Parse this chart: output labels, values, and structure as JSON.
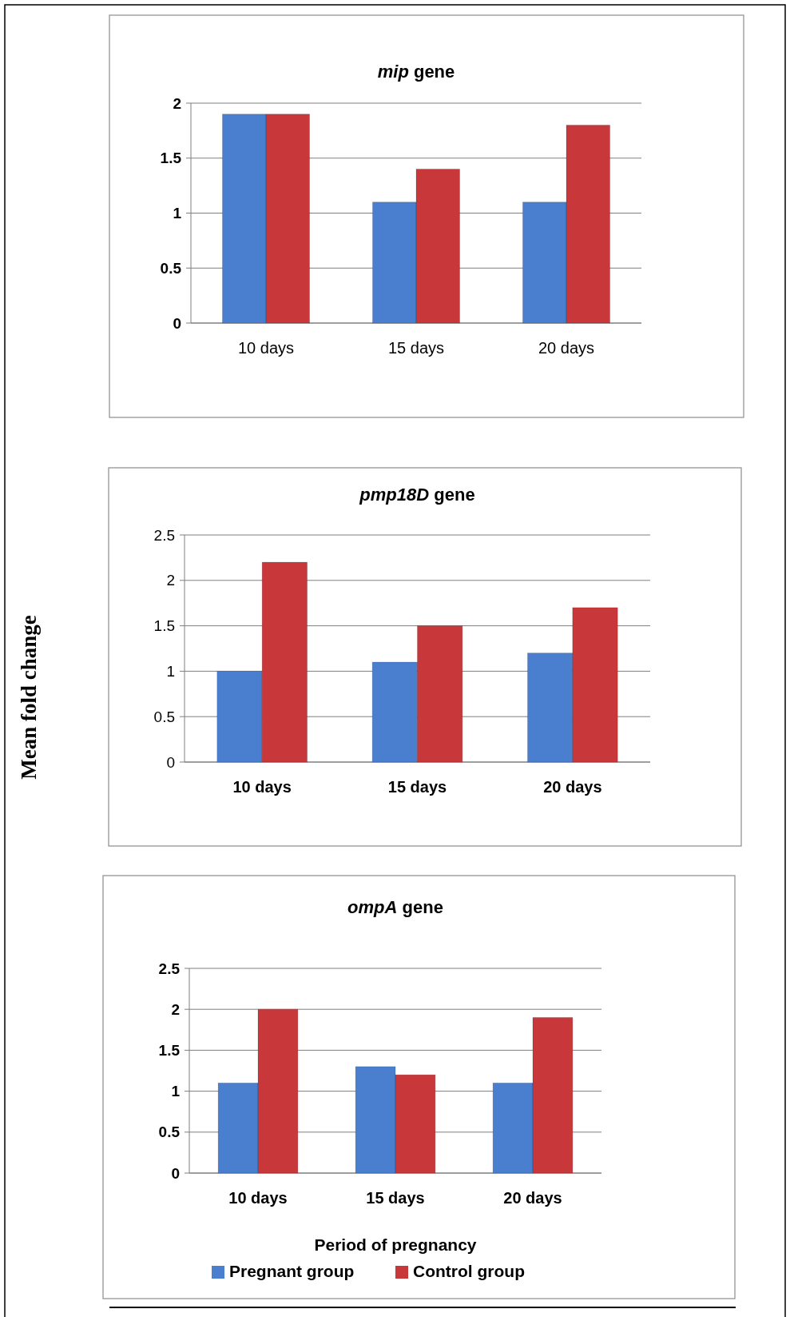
{
  "chart_data": [
    {
      "type": "bar",
      "title": "mip gene",
      "categories": [
        "10 days",
        "15 days",
        "20 days"
      ],
      "series": [
        {
          "color": "#4a7fcf",
          "values": [
            1.9,
            1.1,
            1.1
          ]
        },
        {
          "color": "#c8373a",
          "values": [
            1.9,
            1.4,
            1.8
          ]
        }
      ],
      "ylim": [
        0,
        2
      ],
      "yticks": [
        0,
        0.5,
        1,
        1.5,
        2
      ],
      "grid": "y",
      "legend": false
    },
    {
      "type": "bar",
      "title": "pmp18D gene",
      "ylabel": "Mean fold change",
      "categories": [
        "10 days",
        "15 days",
        "20 days"
      ],
      "series": [
        {
          "color": "#4a7fcf",
          "values": [
            1.0,
            1.1,
            1.2
          ]
        },
        {
          "color": "#c8373a",
          "values": [
            2.2,
            1.5,
            1.7
          ]
        }
      ],
      "ylim": [
        0,
        2.5
      ],
      "yticks": [
        0,
        0.5,
        1,
        1.5,
        2,
        2.5
      ],
      "grid": "y",
      "legend": false
    },
    {
      "type": "bar",
      "title": "ompA gene",
      "xlabel": "Period of pregnancy",
      "categories": [
        "10 days",
        "15 days",
        "20 days"
      ],
      "series": [
        {
          "name": "Pregnant group",
          "color": "#4a7fcf",
          "values": [
            1.1,
            1.3,
            1.1
          ]
        },
        {
          "name": "Control group",
          "color": "#c8373a",
          "values": [
            2.0,
            1.2,
            1.9
          ]
        }
      ],
      "ylim": [
        0,
        2.5
      ],
      "yticks": [
        0,
        0.5,
        1,
        1.5,
        2,
        2.5
      ],
      "grid": "y",
      "legend": "bottom"
    }
  ]
}
